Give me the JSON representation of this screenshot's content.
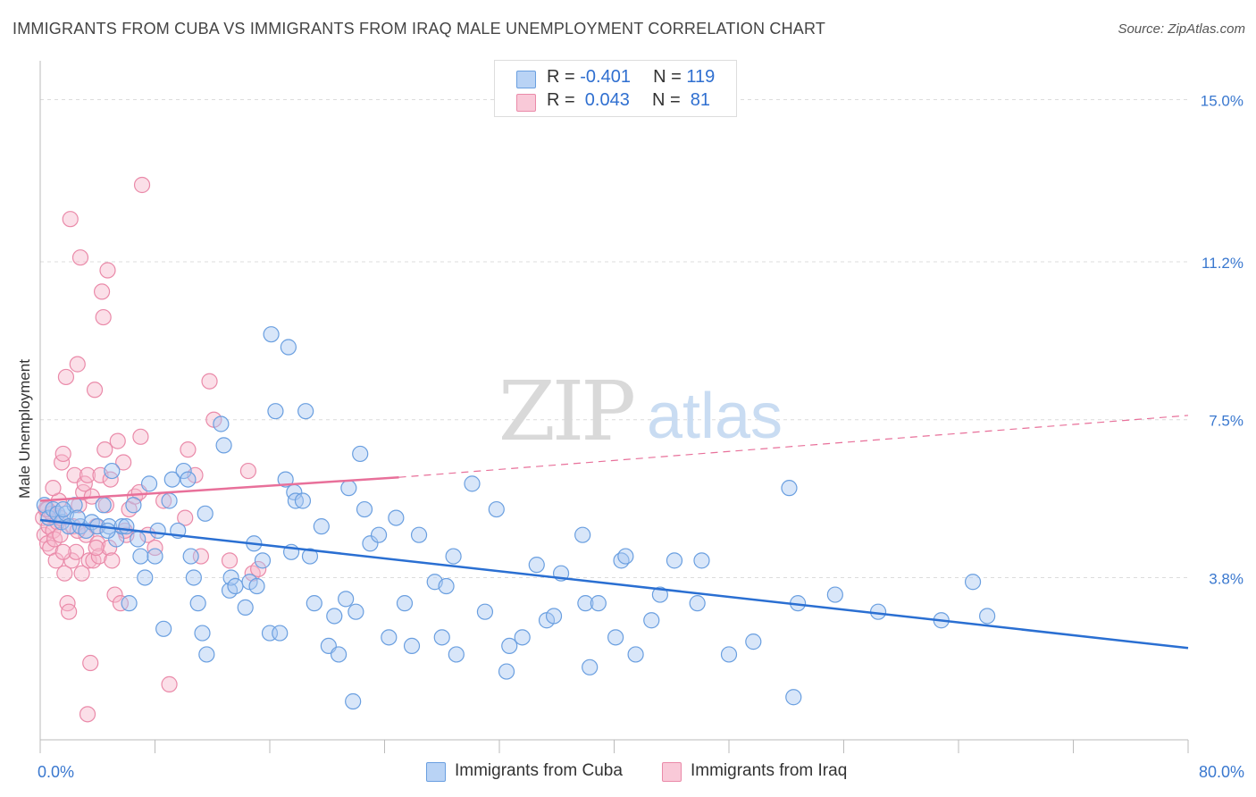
{
  "header": {
    "title": "IMMIGRANTS FROM CUBA VS IMMIGRANTS FROM IRAQ MALE UNEMPLOYMENT CORRELATION CHART",
    "source": "Source: ZipAtlas.com"
  },
  "watermark": {
    "zip": "ZIP",
    "atlas": "atlas"
  },
  "legend": {
    "rows": [
      {
        "r_label": "R =",
        "r_value": "-0.401",
        "n_label": "N =",
        "n_value": "119"
      },
      {
        "r_label": "R =",
        "r_value": " 0.043",
        "n_label": "N =",
        "n_value": " 81"
      }
    ]
  },
  "bottom_legend": {
    "cuba": "Immigrants from Cuba",
    "iraq": "Immigrants from Iraq"
  },
  "colors": {
    "cuba_fill": "#a9c8f2",
    "cuba_stroke": "#6a9fe0",
    "cuba_line": "#2a6fd2",
    "iraq_fill": "#f7b8cc",
    "iraq_stroke": "#ea8aa9",
    "iraq_line": "#e8709a",
    "axis_label": "#3a78cf",
    "grid": "#dcdcdc"
  },
  "chart_data": {
    "type": "scatter",
    "title": "IMMIGRANTS FROM CUBA VS IMMIGRANTS FROM IRAQ MALE UNEMPLOYMENT CORRELATION CHART",
    "xlabel": "",
    "ylabel": "Male Unemployment",
    "xlim": [
      0,
      80
    ],
    "ylim": [
      0,
      15.7
    ],
    "x_tick_labels": [
      {
        "value": 0,
        "label": "0.0%"
      },
      {
        "value": 80,
        "label": "80.0%"
      }
    ],
    "y_ticks": [
      {
        "value": 3.8,
        "label": "3.8%"
      },
      {
        "value": 7.5,
        "label": "7.5%"
      },
      {
        "value": 11.2,
        "label": "11.2%"
      },
      {
        "value": 15.0,
        "label": "15.0%"
      }
    ],
    "x_minor_ticks": [
      0,
      8,
      16,
      24,
      32,
      40,
      48,
      56,
      64,
      72,
      80
    ],
    "grid": true,
    "legend_position": "top-center",
    "series": [
      {
        "name": "Immigrants from Cuba",
        "trendline": {
          "x": [
            0,
            80
          ],
          "y": [
            5.15,
            2.15
          ],
          "style": "solid"
        },
        "points": [
          [
            0.3,
            5.5
          ],
          [
            0.6,
            5.2
          ],
          [
            0.9,
            5.4
          ],
          [
            1.2,
            5.3
          ],
          [
            1.5,
            5.1
          ],
          [
            1.8,
            5.3
          ],
          [
            2.0,
            5.0
          ],
          [
            2.4,
            5.5
          ],
          [
            2.8,
            5.0
          ],
          [
            3.2,
            4.9
          ],
          [
            3.6,
            5.1
          ],
          [
            4.0,
            5.0
          ],
          [
            4.4,
            5.5
          ],
          [
            4.8,
            5.0
          ],
          [
            5.0,
            6.3
          ],
          [
            5.3,
            4.7
          ],
          [
            5.7,
            5.0
          ],
          [
            6.2,
            3.2
          ],
          [
            6.5,
            5.5
          ],
          [
            6.8,
            4.7
          ],
          [
            7.0,
            4.3
          ],
          [
            7.3,
            3.8
          ],
          [
            7.6,
            6.0
          ],
          [
            8.0,
            4.3
          ],
          [
            8.2,
            4.9
          ],
          [
            8.6,
            2.6
          ],
          [
            9.0,
            5.6
          ],
          [
            9.2,
            6.1
          ],
          [
            9.6,
            4.9
          ],
          [
            10.0,
            6.3
          ],
          [
            10.3,
            6.1
          ],
          [
            10.5,
            4.3
          ],
          [
            10.7,
            3.8
          ],
          [
            11.0,
            3.2
          ],
          [
            11.3,
            2.5
          ],
          [
            11.5,
            5.3
          ],
          [
            11.6,
            2.0
          ],
          [
            12.6,
            7.4
          ],
          [
            12.8,
            6.9
          ],
          [
            13.2,
            3.5
          ],
          [
            13.3,
            3.8
          ],
          [
            13.6,
            3.6
          ],
          [
            14.3,
            3.1
          ],
          [
            14.6,
            3.7
          ],
          [
            14.9,
            4.6
          ],
          [
            15.1,
            3.6
          ],
          [
            15.5,
            4.2
          ],
          [
            16.0,
            2.5
          ],
          [
            16.1,
            9.5
          ],
          [
            16.4,
            7.7
          ],
          [
            16.7,
            2.5
          ],
          [
            17.1,
            6.1
          ],
          [
            17.3,
            9.2
          ],
          [
            17.5,
            4.4
          ],
          [
            17.7,
            5.8
          ],
          [
            17.8,
            5.6
          ],
          [
            18.3,
            5.6
          ],
          [
            18.5,
            7.7
          ],
          [
            18.8,
            4.3
          ],
          [
            19.1,
            3.2
          ],
          [
            19.6,
            5.0
          ],
          [
            20.1,
            2.2
          ],
          [
            20.5,
            2.9
          ],
          [
            20.8,
            2.0
          ],
          [
            21.3,
            3.3
          ],
          [
            21.5,
            5.9
          ],
          [
            21.8,
            0.9
          ],
          [
            22.0,
            3.0
          ],
          [
            22.3,
            6.7
          ],
          [
            22.6,
            5.4
          ],
          [
            23.0,
            4.6
          ],
          [
            23.6,
            4.8
          ],
          [
            24.3,
            2.4
          ],
          [
            24.8,
            5.2
          ],
          [
            25.4,
            3.2
          ],
          [
            25.9,
            2.2
          ],
          [
            26.4,
            4.8
          ],
          [
            27.5,
            3.7
          ],
          [
            28.0,
            2.4
          ],
          [
            28.3,
            3.6
          ],
          [
            28.8,
            4.3
          ],
          [
            29.0,
            2.0
          ],
          [
            30.1,
            6.0
          ],
          [
            31.0,
            3.0
          ],
          [
            31.8,
            5.4
          ],
          [
            32.5,
            1.6
          ],
          [
            32.7,
            2.2
          ],
          [
            33.6,
            2.4
          ],
          [
            34.6,
            4.1
          ],
          [
            35.3,
            2.8
          ],
          [
            35.8,
            2.9
          ],
          [
            36.3,
            3.9
          ],
          [
            37.8,
            4.8
          ],
          [
            38.0,
            3.2
          ],
          [
            38.3,
            1.7
          ],
          [
            38.9,
            3.2
          ],
          [
            40.1,
            2.4
          ],
          [
            40.5,
            4.2
          ],
          [
            40.8,
            4.3
          ],
          [
            41.5,
            2.0
          ],
          [
            42.6,
            2.8
          ],
          [
            43.2,
            3.4
          ],
          [
            44.2,
            4.2
          ],
          [
            45.8,
            3.2
          ],
          [
            46.1,
            4.2
          ],
          [
            48.0,
            2.0
          ],
          [
            49.7,
            2.3
          ],
          [
            52.2,
            5.9
          ],
          [
            52.5,
            1.0
          ],
          [
            52.8,
            3.2
          ],
          [
            55.4,
            3.4
          ],
          [
            58.4,
            3.0
          ],
          [
            62.8,
            2.8
          ],
          [
            65.0,
            3.7
          ],
          [
            66.0,
            2.9
          ],
          [
            1.6,
            5.4
          ],
          [
            2.6,
            5.2
          ],
          [
            4.7,
            4.9
          ],
          [
            6.0,
            5.0
          ]
        ]
      },
      {
        "name": "Immigrants from Iraq",
        "trendline_solid": {
          "x": [
            0,
            25
          ],
          "y": [
            5.6,
            6.15
          ]
        },
        "trendline_dashed": {
          "x": [
            25,
            80
          ],
          "y": [
            6.15,
            7.6
          ]
        },
        "points": [
          [
            0.2,
            5.2
          ],
          [
            0.3,
            4.8
          ],
          [
            0.4,
            5.4
          ],
          [
            0.5,
            4.6
          ],
          [
            0.6,
            5.0
          ],
          [
            0.7,
            4.5
          ],
          [
            0.8,
            5.3
          ],
          [
            0.9,
            4.9
          ],
          [
            1.0,
            4.7
          ],
          [
            1.1,
            4.2
          ],
          [
            1.2,
            5.1
          ],
          [
            1.3,
            5.6
          ],
          [
            1.4,
            4.8
          ],
          [
            1.5,
            6.5
          ],
          [
            1.6,
            6.7
          ],
          [
            1.7,
            3.9
          ],
          [
            1.8,
            8.5
          ],
          [
            1.9,
            3.2
          ],
          [
            2.0,
            3.0
          ],
          [
            2.1,
            12.2
          ],
          [
            2.2,
            4.2
          ],
          [
            2.3,
            5.0
          ],
          [
            2.4,
            6.2
          ],
          [
            2.5,
            4.4
          ],
          [
            2.6,
            8.8
          ],
          [
            2.7,
            5.5
          ],
          [
            2.8,
            11.3
          ],
          [
            2.9,
            3.9
          ],
          [
            3.0,
            5.8
          ],
          [
            3.1,
            6.0
          ],
          [
            3.2,
            4.8
          ],
          [
            3.3,
            6.2
          ],
          [
            3.4,
            4.2
          ],
          [
            3.5,
            1.8
          ],
          [
            3.6,
            5.7
          ],
          [
            3.7,
            4.2
          ],
          [
            3.8,
            8.2
          ],
          [
            3.9,
            5.0
          ],
          [
            4.0,
            4.6
          ],
          [
            4.1,
            4.3
          ],
          [
            4.2,
            6.2
          ],
          [
            4.3,
            10.5
          ],
          [
            4.4,
            9.9
          ],
          [
            4.5,
            6.8
          ],
          [
            4.6,
            5.5
          ],
          [
            4.7,
            11.0
          ],
          [
            4.8,
            4.5
          ],
          [
            5.0,
            4.2
          ],
          [
            5.2,
            3.4
          ],
          [
            5.4,
            7.0
          ],
          [
            5.6,
            3.2
          ],
          [
            5.8,
            6.5
          ],
          [
            6.0,
            4.8
          ],
          [
            6.2,
            5.4
          ],
          [
            6.6,
            5.7
          ],
          [
            7.0,
            7.1
          ],
          [
            7.1,
            13.0
          ],
          [
            7.5,
            4.8
          ],
          [
            8.0,
            4.5
          ],
          [
            9.0,
            1.3
          ],
          [
            10.1,
            5.2
          ],
          [
            10.3,
            6.8
          ],
          [
            10.8,
            6.2
          ],
          [
            11.2,
            4.3
          ],
          [
            11.8,
            8.4
          ],
          [
            12.1,
            7.5
          ],
          [
            13.2,
            4.2
          ],
          [
            14.5,
            6.3
          ],
          [
            14.8,
            3.9
          ],
          [
            15.2,
            4.0
          ],
          [
            3.3,
            0.6
          ],
          [
            1.4,
            5.2
          ],
          [
            2.6,
            4.9
          ],
          [
            0.9,
            5.9
          ],
          [
            1.6,
            4.4
          ],
          [
            3.9,
            4.5
          ],
          [
            4.9,
            6.1
          ],
          [
            5.9,
            4.9
          ],
          [
            6.9,
            5.8
          ],
          [
            8.6,
            5.6
          ],
          [
            0.5,
            5.4
          ]
        ]
      }
    ]
  }
}
